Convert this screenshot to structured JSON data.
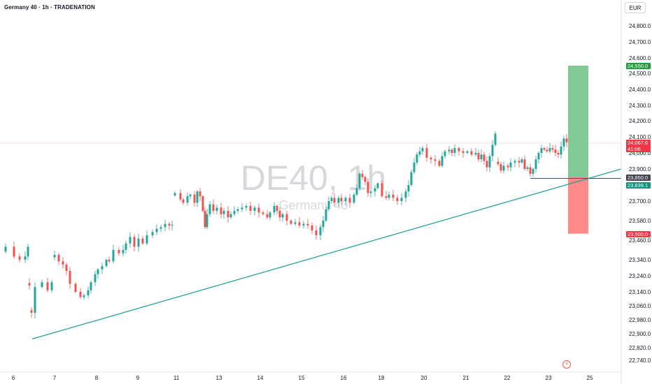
{
  "header": {
    "title": "Germany 40 · 1h · TRADENATION"
  },
  "toolbar": {
    "currency": "EUR"
  },
  "watermark": {
    "symbol": "DE40, 1h",
    "name": "Germany 40"
  },
  "colors": {
    "up": "#26a69a",
    "down": "#ef5350",
    "profit_zone": "#81c995",
    "loss_zone": "#ff8a8a",
    "trendline": "#1a9e8f",
    "price_line": "#f4a7a6"
  },
  "price_labels": {
    "target": "24,550.0",
    "current": "24,067.6",
    "countdown": "41:06",
    "entry": "23,850.0",
    "secondary": "23,839.1",
    "stop": "23,500.0"
  },
  "icons": {
    "bolt": "lightning-bolt-icon"
  },
  "chart_data": {
    "type": "candlestick",
    "symbol": "DE40",
    "timeframe": "1h",
    "y_tick_labels": [
      "24,800.0",
      "24,700.0",
      "24,600.0",
      "24,500.0",
      "24,400.0",
      "24,300.0",
      "24,200.0",
      "24,100.0",
      "24,000.0",
      "23,900.0",
      "23,700.0",
      "23,580.0",
      "23,460.0",
      "23,340.0",
      "23,240.0",
      "23,140.0",
      "23,060.0",
      "22,980.0",
      "22,900.0",
      "22,820.0",
      "22,740.0"
    ],
    "x_tick_labels": [
      "6",
      "7",
      "8",
      "9",
      "11",
      "13",
      "14",
      "15",
      "16",
      "18",
      "20",
      "21",
      "22",
      "23",
      "25"
    ],
    "price_path": [
      [
        0,
        23390
      ],
      [
        8,
        23420
      ],
      [
        20,
        23360
      ],
      [
        28,
        23340
      ],
      [
        36,
        23360
      ],
      [
        40,
        23420
      ],
      [
        42,
        23180
      ],
      [
        45,
        23020
      ],
      [
        50,
        23170
      ],
      [
        60,
        23200
      ],
      [
        68,
        23150
      ],
      [
        74,
        23200
      ],
      [
        78,
        23370
      ],
      [
        84,
        23330
      ],
      [
        90,
        23310
      ],
      [
        95,
        23270
      ],
      [
        100,
        23190
      ],
      [
        108,
        23140
      ],
      [
        115,
        23110
      ],
      [
        120,
        23120
      ],
      [
        126,
        23150
      ],
      [
        130,
        23200
      ],
      [
        136,
        23250
      ],
      [
        140,
        23280
      ],
      [
        146,
        23300
      ],
      [
        152,
        23340
      ],
      [
        156,
        23330
      ],
      [
        162,
        23400
      ],
      [
        170,
        23380
      ],
      [
        176,
        23400
      ],
      [
        180,
        23440
      ],
      [
        186,
        23480
      ],
      [
        192,
        23420
      ],
      [
        198,
        23470
      ],
      [
        204,
        23440
      ],
      [
        210,
        23490
      ],
      [
        218,
        23510
      ],
      [
        224,
        23530
      ],
      [
        230,
        23540
      ],
      [
        236,
        23560
      ],
      [
        242,
        23550
      ],
      [
        246,
        23555
      ],
      [
        250,
        23750
      ],
      [
        258,
        23710
      ],
      [
        262,
        23690
      ],
      [
        268,
        23730
      ],
      [
        272,
        23740
      ],
      [
        278,
        23690
      ],
      [
        282,
        23760
      ],
      [
        286,
        23730
      ],
      [
        290,
        23640
      ],
      [
        293,
        23540
      ],
      [
        296,
        23620
      ],
      [
        300,
        23680
      ],
      [
        305,
        23640
      ],
      [
        310,
        23660
      ],
      [
        316,
        23620
      ],
      [
        320,
        23640
      ],
      [
        326,
        23600
      ],
      [
        330,
        23620
      ],
      [
        335,
        23640
      ],
      [
        340,
        23650
      ],
      [
        346,
        23660
      ],
      [
        352,
        23670
      ],
      [
        358,
        23640
      ],
      [
        364,
        23660
      ],
      [
        370,
        23630
      ],
      [
        376,
        23620
      ],
      [
        382,
        23600
      ],
      [
        386,
        23630
      ],
      [
        392,
        23670
      ],
      [
        396,
        23640
      ],
      [
        400,
        23600
      ],
      [
        404,
        23620
      ],
      [
        410,
        23580
      ],
      [
        416,
        23560
      ],
      [
        422,
        23570
      ],
      [
        428,
        23550
      ],
      [
        434,
        23560
      ],
      [
        440,
        23550
      ],
      [
        446,
        23520
      ],
      [
        452,
        23490
      ],
      [
        458,
        23540
      ],
      [
        462,
        23580
      ],
      [
        466,
        23650
      ],
      [
        470,
        23700
      ],
      [
        474,
        23720
      ],
      [
        478,
        23690
      ],
      [
        484,
        23720
      ],
      [
        488,
        23700
      ],
      [
        494,
        23720
      ],
      [
        500,
        23690
      ],
      [
        506,
        23740
      ],
      [
        510,
        23780
      ],
      [
        514,
        23870
      ],
      [
        518,
        23850
      ],
      [
        522,
        23820
      ],
      [
        526,
        23750
      ],
      [
        530,
        23760
      ],
      [
        536,
        23780
      ],
      [
        540,
        23810
      ],
      [
        546,
        23730
      ],
      [
        552,
        23720
      ],
      [
        556,
        23740
      ],
      [
        562,
        23720
      ],
      [
        568,
        23700
      ],
      [
        574,
        23720
      ],
      [
        580,
        23760
      ],
      [
        584,
        23800
      ],
      [
        588,
        23880
      ],
      [
        592,
        23940
      ],
      [
        596,
        23990
      ],
      [
        600,
        24010
      ],
      [
        604,
        24030
      ],
      [
        610,
        23970
      ],
      [
        616,
        23960
      ],
      [
        622,
        23950
      ],
      [
        628,
        23920
      ],
      [
        632,
        23980
      ],
      [
        636,
        24010
      ],
      [
        642,
        24020
      ],
      [
        646,
        24000
      ],
      [
        650,
        24030
      ],
      [
        656,
        24010
      ],
      [
        662,
        24000
      ],
      [
        668,
        24010
      ],
      [
        674,
        23990
      ],
      [
        680,
        24000
      ],
      [
        684,
        23960
      ],
      [
        688,
        23990
      ],
      [
        692,
        23950
      ],
      [
        696,
        23910
      ],
      [
        700,
        23980
      ],
      [
        704,
        24050
      ],
      [
        708,
        24120
      ],
      [
        712,
        23930
      ],
      [
        716,
        23890
      ],
      [
        720,
        23920
      ],
      [
        726,
        23910
      ],
      [
        730,
        23940
      ],
      [
        736,
        23950
      ],
      [
        742,
        23940
      ],
      [
        746,
        23960
      ],
      [
        750,
        23900
      ],
      [
        754,
        23910
      ],
      [
        758,
        23870
      ],
      [
        762,
        23900
      ],
      [
        766,
        23960
      ],
      [
        770,
        24000
      ],
      [
        774,
        24030
      ],
      [
        778,
        24020
      ],
      [
        782,
        24010
      ],
      [
        786,
        24030
      ],
      [
        790,
        24020
      ],
      [
        794,
        24000
      ],
      [
        798,
        23990
      ],
      [
        802,
        24040
      ],
      [
        806,
        24090
      ],
      [
        810,
        24067
      ]
    ],
    "position": {
      "type": "long",
      "target": 24550.0,
      "entry": 23850.0,
      "stop": 23500.0
    },
    "trendline": {
      "from": [
        "6",
        22870
      ],
      "to": [
        "25",
        23900
      ]
    },
    "last_price": 24067.6,
    "grid": false
  }
}
